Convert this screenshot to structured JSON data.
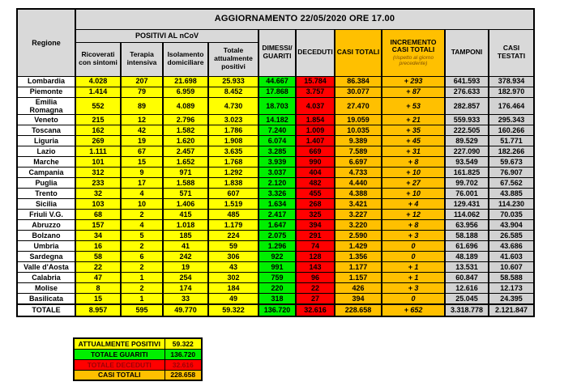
{
  "title": "AGGIORNAMENTO 22/05/2020 ORE 17.00",
  "colors": {
    "yellow": "#FFFF00",
    "green": "#00EF00",
    "red": "#FF0000",
    "orange": "#FFC000",
    "grey_header": "#D9D9D9",
    "grey_data": "#D2D2D2",
    "dark_red_text": "#9C0006",
    "note_text": "#7F4F00"
  },
  "table": {
    "region_header": "Regione",
    "group_header": "POSITIVI AL nCoV",
    "increment_note": "(rispetto al giorno precedente)",
    "columns": [
      "Ricoverati con sintomi",
      "Terapia intensiva",
      "Isolamento domiciliare",
      "Totale attualmente positivi",
      "DIMESSI/ GUARITI",
      "DECEDUTI",
      "CASI TOTALI",
      "INCREMENTO CASI TOTALI",
      "TAMPONI",
      "CASI TESTATI"
    ],
    "rows": [
      {
        "region": "Lombardia",
        "values": [
          "4.028",
          "207",
          "21.698",
          "25.933",
          "44.667",
          "15.784",
          "86.384",
          "+ 293",
          "641.593",
          "378.934"
        ]
      },
      {
        "region": "Piemonte",
        "values": [
          "1.414",
          "79",
          "6.959",
          "8.452",
          "17.868",
          "3.757",
          "30.077",
          "+ 87",
          "276.633",
          "182.970"
        ]
      },
      {
        "region": "Emilia Romagna",
        "values": [
          "552",
          "89",
          "4.089",
          "4.730",
          "18.703",
          "4.037",
          "27.470",
          "+ 53",
          "282.857",
          "176.464"
        ]
      },
      {
        "region": "Veneto",
        "values": [
          "215",
          "12",
          "2.796",
          "3.023",
          "14.182",
          "1.854",
          "19.059",
          "+ 21",
          "559.933",
          "295.343"
        ]
      },
      {
        "region": "Toscana",
        "values": [
          "162",
          "42",
          "1.582",
          "1.786",
          "7.240",
          "1.009",
          "10.035",
          "+ 35",
          "222.505",
          "160.266"
        ]
      },
      {
        "region": "Liguria",
        "values": [
          "269",
          "19",
          "1.620",
          "1.908",
          "6.074",
          "1.407",
          "9.389",
          "+ 45",
          "89.529",
          "51.771"
        ]
      },
      {
        "region": "Lazio",
        "values": [
          "1.111",
          "67",
          "2.457",
          "3.635",
          "3.285",
          "669",
          "7.589",
          "+ 31",
          "227.090",
          "182.266"
        ]
      },
      {
        "region": "Marche",
        "values": [
          "101",
          "15",
          "1.652",
          "1.768",
          "3.939",
          "990",
          "6.697",
          "+ 8",
          "93.549",
          "59.673"
        ]
      },
      {
        "region": "Campania",
        "values": [
          "312",
          "9",
          "971",
          "1.292",
          "3.037",
          "404",
          "4.733",
          "+ 10",
          "161.825",
          "76.907"
        ]
      },
      {
        "region": "Puglia",
        "values": [
          "233",
          "17",
          "1.588",
          "1.838",
          "2.120",
          "482",
          "4.440",
          "+ 27",
          "99.702",
          "67.562"
        ]
      },
      {
        "region": "Trento",
        "values": [
          "32",
          "4",
          "571",
          "607",
          "3.326",
          "455",
          "4.388",
          "+ 10",
          "76.001",
          "43.885"
        ]
      },
      {
        "region": "Sicilia",
        "values": [
          "103",
          "10",
          "1.406",
          "1.519",
          "1.634",
          "268",
          "3.421",
          "+ 4",
          "129.431",
          "114.230"
        ]
      },
      {
        "region": "Friuli V.G.",
        "values": [
          "68",
          "2",
          "415",
          "485",
          "2.417",
          "325",
          "3.227",
          "+ 12",
          "114.062",
          "70.035"
        ]
      },
      {
        "region": "Abruzzo",
        "values": [
          "157",
          "4",
          "1.018",
          "1.179",
          "1.647",
          "394",
          "3.220",
          "+ 8",
          "63.956",
          "43.904"
        ]
      },
      {
        "region": "Bolzano",
        "values": [
          "34",
          "5",
          "185",
          "224",
          "2.075",
          "291",
          "2.590",
          "+ 3",
          "58.188",
          "26.585"
        ]
      },
      {
        "region": "Umbria",
        "values": [
          "16",
          "2",
          "41",
          "59",
          "1.296",
          "74",
          "1.429",
          "0",
          "61.696",
          "43.686"
        ]
      },
      {
        "region": "Sardegna",
        "values": [
          "58",
          "6",
          "242",
          "306",
          "922",
          "128",
          "1.356",
          "0",
          "48.189",
          "41.603"
        ]
      },
      {
        "region": "Valle d'Aosta",
        "values": [
          "22",
          "2",
          "19",
          "43",
          "991",
          "143",
          "1.177",
          "+ 1",
          "13.531",
          "10.607"
        ]
      },
      {
        "region": "Calabria",
        "values": [
          "47",
          "1",
          "254",
          "302",
          "759",
          "96",
          "1.157",
          "+ 1",
          "60.847",
          "58.588"
        ]
      },
      {
        "region": "Molise",
        "values": [
          "8",
          "2",
          "174",
          "184",
          "220",
          "22",
          "426",
          "+ 3",
          "12.616",
          "12.173"
        ]
      },
      {
        "region": "Basilicata",
        "values": [
          "15",
          "1",
          "33",
          "49",
          "318",
          "27",
          "394",
          "0",
          "25.045",
          "24.395"
        ]
      },
      {
        "region": "TOTALE",
        "values": [
          "8.957",
          "595",
          "49.770",
          "59.322",
          "136.720",
          "32.616",
          "228.658",
          "+ 652",
          "3.318.778",
          "2.121.847"
        ]
      }
    ]
  },
  "summary": [
    {
      "label": "ATTUALMENTE POSITIVI",
      "value": "59.322",
      "color": "yellow"
    },
    {
      "label": "TOTALE GUARITI",
      "value": "136.720",
      "color": "green"
    },
    {
      "label": "TOTALE DECEDUTI",
      "value": "32.616",
      "color": "red"
    },
    {
      "label": "CASI TOTALI",
      "value": "228.658",
      "color": "orange"
    }
  ],
  "chart_data": {
    "type": "table",
    "title": "AGGIORNAMENTO 22/05/2020 ORE 17.00",
    "columns": [
      "Regione",
      "Ricoverati con sintomi",
      "Terapia intensiva",
      "Isolamento domiciliare",
      "Totale attualmente positivi",
      "DIMESSI/GUARITI",
      "DECEDUTI",
      "CASI TOTALI",
      "INCREMENTO CASI TOTALI (rispetto al giorno precedente)",
      "TAMPONI",
      "CASI TESTATI"
    ],
    "rows": [
      [
        "Lombardia",
        4028,
        207,
        21698,
        25933,
        44667,
        15784,
        86384,
        293,
        641593,
        378934
      ],
      [
        "Piemonte",
        1414,
        79,
        6959,
        8452,
        17868,
        3757,
        30077,
        87,
        276633,
        182970
      ],
      [
        "Emilia Romagna",
        552,
        89,
        4089,
        4730,
        18703,
        4037,
        27470,
        53,
        282857,
        176464
      ],
      [
        "Veneto",
        215,
        12,
        2796,
        3023,
        14182,
        1854,
        19059,
        21,
        559933,
        295343
      ],
      [
        "Toscana",
        162,
        42,
        1582,
        1786,
        7240,
        1009,
        10035,
        35,
        222505,
        160266
      ],
      [
        "Liguria",
        269,
        19,
        1620,
        1908,
        6074,
        1407,
        9389,
        45,
        89529,
        51771
      ],
      [
        "Lazio",
        1111,
        67,
        2457,
        3635,
        3285,
        669,
        7589,
        31,
        227090,
        182266
      ],
      [
        "Marche",
        101,
        15,
        1652,
        1768,
        3939,
        990,
        6697,
        8,
        93549,
        59673
      ],
      [
        "Campania",
        312,
        9,
        971,
        1292,
        3037,
        404,
        4733,
        10,
        161825,
        76907
      ],
      [
        "Puglia",
        233,
        17,
        1588,
        1838,
        2120,
        482,
        4440,
        27,
        99702,
        67562
      ],
      [
        "Trento",
        32,
        4,
        571,
        607,
        3326,
        455,
        4388,
        10,
        76001,
        43885
      ],
      [
        "Sicilia",
        103,
        10,
        1406,
        1519,
        1634,
        268,
        3421,
        4,
        129431,
        114230
      ],
      [
        "Friuli V.G.",
        68,
        2,
        415,
        485,
        2417,
        325,
        3227,
        12,
        114062,
        70035
      ],
      [
        "Abruzzo",
        157,
        4,
        1018,
        1179,
        1647,
        394,
        3220,
        8,
        63956,
        43904
      ],
      [
        "Bolzano",
        34,
        5,
        185,
        224,
        2075,
        291,
        2590,
        3,
        58188,
        26585
      ],
      [
        "Umbria",
        16,
        2,
        41,
        59,
        1296,
        74,
        1429,
        0,
        61696,
        43686
      ],
      [
        "Sardegna",
        58,
        6,
        242,
        306,
        922,
        128,
        1356,
        0,
        48189,
        41603
      ],
      [
        "Valle d'Aosta",
        22,
        2,
        19,
        43,
        991,
        143,
        1177,
        1,
        13531,
        10607
      ],
      [
        "Calabria",
        47,
        1,
        254,
        302,
        759,
        96,
        1157,
        1,
        60847,
        58588
      ],
      [
        "Molise",
        8,
        2,
        174,
        184,
        220,
        22,
        426,
        3,
        12616,
        12173
      ],
      [
        "Basilicata",
        15,
        1,
        33,
        49,
        318,
        27,
        394,
        0,
        25045,
        24395
      ],
      [
        "TOTALE",
        8957,
        595,
        49770,
        59322,
        136720,
        32616,
        228658,
        652,
        3318778,
        2121847
      ]
    ],
    "summary": {
      "ATTUALMENTE POSITIVI": 59322,
      "TOTALE GUARITI": 136720,
      "TOTALE DECEDUTI": 32616,
      "CASI TOTALI": 228658
    }
  }
}
